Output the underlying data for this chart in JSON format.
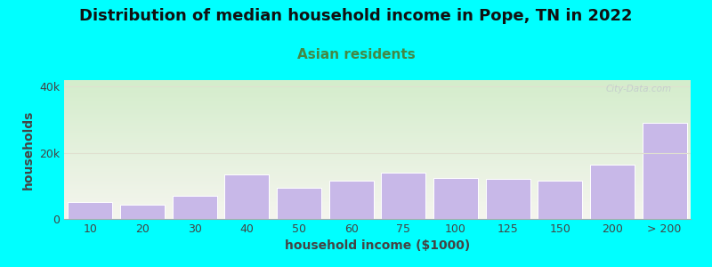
{
  "title": "Distribution of median household income in Pope, TN in 2022",
  "subtitle": "Asian residents",
  "xlabel": "household income ($1000)",
  "ylabel": "households",
  "background_color": "#00FFFF",
  "plot_bg_gradient_top": "#d4edcc",
  "plot_bg_gradient_bottom": "#f5f5ee",
  "bar_color": "#c8b8e8",
  "bar_edge_color": "#ffffff",
  "categories": [
    "10",
    "20",
    "30",
    "40",
    "50",
    "60",
    "75",
    "100",
    "125",
    "150",
    "200",
    "> 200"
  ],
  "values": [
    5000,
    4200,
    7000,
    13500,
    9500,
    11500,
    14000,
    12500,
    12000,
    11500,
    16500,
    29000
  ],
  "ylim": [
    0,
    42000
  ],
  "yticks": [
    0,
    20000,
    40000
  ],
  "ytick_labels": [
    "0",
    "20k",
    "40k"
  ],
  "title_fontsize": 13,
  "subtitle_fontsize": 11,
  "axis_label_fontsize": 10,
  "tick_fontsize": 9,
  "watermark": "City-Data.com",
  "subtitle_color": "#448844",
  "title_color": "#111111",
  "ylabel_color": "#444444",
  "xlabel_color": "#444444",
  "tick_color": "#444444"
}
